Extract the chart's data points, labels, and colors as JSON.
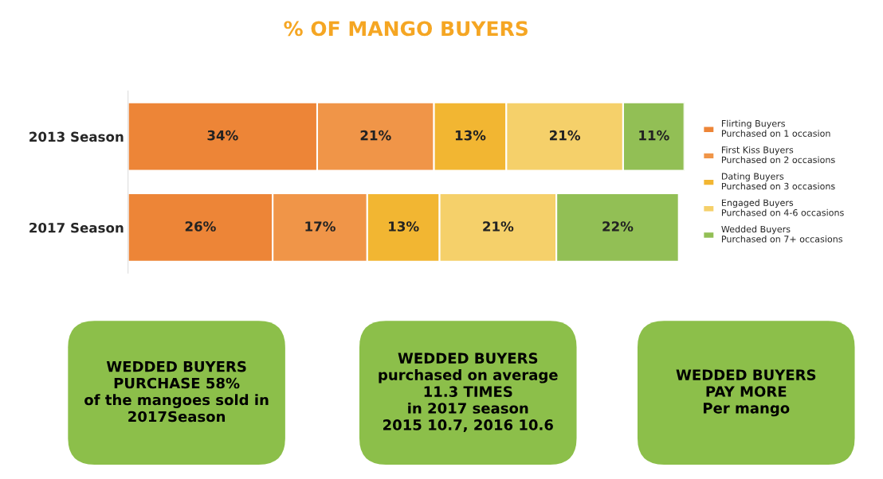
{
  "chart_data": {
    "type": "bar",
    "title": "% OF MANGO BUYERS",
    "orientation": "horizontal",
    "stacked": true,
    "legend": "right",
    "grid": false,
    "tick_labels": "y",
    "categories": [
      "2013 Season",
      "2017 Season"
    ],
    "series": [
      {
        "name": "Flirting Buyers\nPurchased on 1 occasion",
        "color": "#ed8537",
        "values": [
          34,
          26
        ],
        "value_labels": [
          "34%",
          "26%"
        ]
      },
      {
        "name": "First Kiss Buyers\nPurchased on 2 occasions",
        "color": "#f09548",
        "values": [
          21,
          17
        ],
        "value_labels": [
          "21%",
          "17%"
        ]
      },
      {
        "name": "Dating Buyers\nPurchased on 3 occasions",
        "color": "#f2b632",
        "values": [
          13,
          13
        ],
        "value_labels": [
          "13%",
          "13%"
        ]
      },
      {
        "name": "Engaged Buyers\nPurchased on 4-6 occasions",
        "color": "#f5d06a",
        "values": [
          21,
          21
        ],
        "value_labels": [
          "21%",
          "21%"
        ]
      },
      {
        "name": "Wedded Buyers\nPurchased on 7+ occasions",
        "color": "#92bf55",
        "values": [
          11,
          22
        ],
        "value_labels": [
          "11%",
          "22%"
        ]
      }
    ],
    "annotations": [
      "WEDDED BUYERS\nPURCHASE 58%\nof the mangoes sold in\n2017Season",
      "WEDDED BUYERS\npurchased on average\n11.3 TIMES\nin 2017 season\n2015 10.7, 2016 10.6",
      "WEDDED BUYERS\nPAY MORE\nPer mango"
    ]
  }
}
